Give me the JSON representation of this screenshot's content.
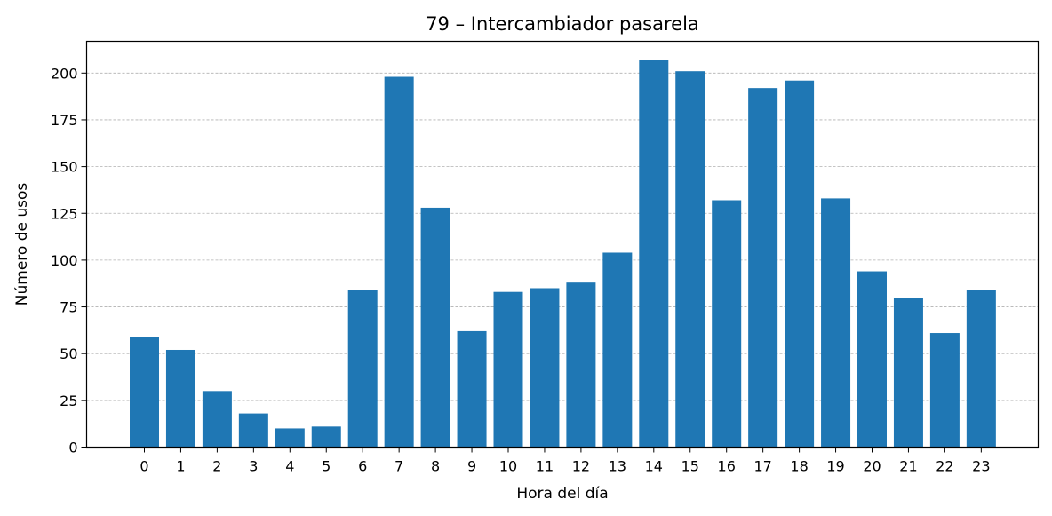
{
  "chart_data": {
    "type": "bar",
    "title": "79 – Intercambiador pasarela",
    "xlabel": "Hora del día",
    "ylabel": "Número de usos",
    "categories": [
      "0",
      "1",
      "2",
      "3",
      "4",
      "5",
      "6",
      "7",
      "8",
      "9",
      "10",
      "11",
      "12",
      "13",
      "14",
      "15",
      "16",
      "17",
      "18",
      "19",
      "20",
      "21",
      "22",
      "23"
    ],
    "values": [
      59,
      52,
      30,
      18,
      10,
      11,
      84,
      198,
      128,
      62,
      83,
      85,
      88,
      104,
      207,
      201,
      132,
      192,
      196,
      133,
      94,
      80,
      61,
      84
    ],
    "yticks": [
      0,
      25,
      50,
      75,
      100,
      125,
      150,
      175,
      200
    ],
    "ylim": [
      0,
      217
    ],
    "bar_color": "#1f77b4",
    "grid": "horizontal dashed",
    "legend": "none"
  }
}
